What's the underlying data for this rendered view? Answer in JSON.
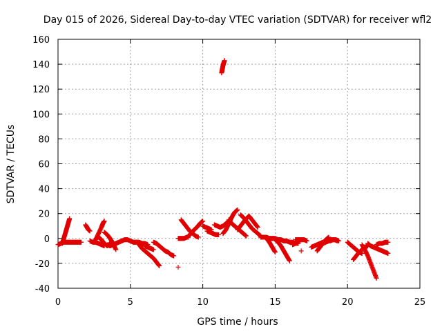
{
  "chart_data": {
    "type": "scatter",
    "title": "Day 015 of 2026, Sidereal Day-to-day VTEC variation (SDTVAR) for receiver wfl2",
    "xlabel": "GPS time / hours",
    "ylabel": "SDTVAR / TECUs",
    "xlim": [
      0,
      25
    ],
    "ylim": [
      -40,
      160
    ],
    "xticks": [
      "0",
      "5",
      "10",
      "15",
      "20",
      "25"
    ],
    "yticks": [
      "-40",
      "-20",
      "0",
      "20",
      "40",
      "60",
      "80",
      "100",
      "120",
      "140",
      "160"
    ],
    "grid": true,
    "marker": "+",
    "color": "#e00000",
    "series": [
      {
        "name": "seg01",
        "x": [
          0.0,
          0.2,
          0.4,
          0.6,
          0.8,
          1.0,
          1.2,
          1.4,
          1.6
        ],
        "y": [
          -5,
          -4,
          -3,
          -3,
          -3,
          -3,
          -3,
          -3,
          -3
        ]
      },
      {
        "name": "seg02",
        "x": [
          0.3,
          0.4,
          0.5,
          0.6,
          0.7,
          0.8
        ],
        "y": [
          -4,
          0,
          4,
          8,
          12,
          16
        ]
      },
      {
        "name": "seg03",
        "x": [
          1.9,
          2.0,
          2.1,
          2.2
        ],
        "y": [
          11,
          9,
          7,
          6
        ]
      },
      {
        "name": "seg04",
        "x": [
          2.2,
          2.4,
          2.6,
          2.8,
          3.0,
          3.2
        ],
        "y": [
          -2,
          -3,
          -3,
          -4,
          -5,
          -6
        ]
      },
      {
        "name": "seg05",
        "x": [
          2.6,
          2.8,
          3.0,
          3.1,
          3.2
        ],
        "y": [
          -1,
          4,
          9,
          12,
          14
        ]
      },
      {
        "name": "seg06",
        "x": [
          2.8,
          3.0,
          3.2,
          3.4,
          3.6,
          3.8
        ],
        "y": [
          1,
          -1,
          -4,
          -6,
          -4,
          -3
        ]
      },
      {
        "name": "seg07",
        "x": [
          3.2,
          3.4,
          3.6,
          3.8,
          4.0
        ],
        "y": [
          5,
          3,
          0,
          -4,
          -9
        ]
      },
      {
        "name": "seg08",
        "x": [
          3.4,
          3.6,
          3.8,
          4.0,
          4.2,
          4.4,
          4.6,
          4.8,
          5.0,
          5.2
        ],
        "y": [
          -5,
          -6,
          -5,
          -4,
          -3,
          -2,
          -1,
          -1,
          -2,
          -3
        ]
      },
      {
        "name": "seg09",
        "x": [
          5.2,
          5.4,
          5.6,
          5.8,
          6.0,
          6.2
        ],
        "y": [
          -3,
          -3,
          -3,
          -4,
          -4,
          -5
        ]
      },
      {
        "name": "seg10",
        "x": [
          5.6,
          5.8,
          6.0,
          6.2,
          6.4,
          6.6,
          6.8,
          7.0
        ],
        "y": [
          -5,
          -8,
          -10,
          -12,
          -14,
          -16,
          -19,
          -22
        ]
      },
      {
        "name": "seg11",
        "x": [
          6.0,
          6.2,
          6.4,
          6.6
        ],
        "y": [
          -6,
          -7,
          -8,
          -9
        ]
      },
      {
        "name": "seg12",
        "x": [
          6.6,
          6.8,
          7.0,
          7.2,
          7.4,
          7.6,
          7.8,
          8.0
        ],
        "y": [
          -3,
          -4,
          -6,
          -8,
          -10,
          -11,
          -13,
          -14
        ]
      },
      {
        "name": "seg13",
        "x": [
          8.3
        ],
        "y": [
          -23
        ]
      },
      {
        "name": "seg14",
        "x": [
          8.3,
          8.5,
          8.7,
          8.9,
          9.0
        ],
        "y": [
          0,
          0,
          0,
          1,
          1
        ]
      },
      {
        "name": "seg15",
        "x": [
          8.5,
          8.7,
          8.9,
          9.1,
          9.3,
          9.5,
          9.7
        ],
        "y": [
          15,
          12,
          9,
          6,
          4,
          2,
          1
        ]
      },
      {
        "name": "seg16",
        "x": [
          9.0,
          9.2,
          9.4,
          9.6,
          9.8,
          10.0
        ],
        "y": [
          2,
          4,
          7,
          9,
          12,
          14
        ]
      },
      {
        "name": "seg17",
        "x": [
          10.0,
          10.2,
          10.4,
          10.6
        ],
        "y": [
          10,
          9,
          8,
          7
        ]
      },
      {
        "name": "seg18",
        "x": [
          10.3,
          10.5,
          10.7,
          10.9,
          11.1
        ],
        "y": [
          6,
          5,
          4,
          3,
          3
        ]
      },
      {
        "name": "seg19",
        "x": [
          10.8,
          11.0,
          11.2,
          11.4,
          11.6,
          11.8,
          12.0
        ],
        "y": [
          11,
          10,
          9,
          10,
          12,
          14,
          17
        ]
      },
      {
        "name": "seg20",
        "x": [
          11.3,
          11.35,
          11.4,
          11.45,
          11.5
        ],
        "y": [
          133,
          136,
          139,
          141,
          143
        ]
      },
      {
        "name": "seg21",
        "x": [
          11.4,
          11.6,
          11.8,
          12.0,
          12.2,
          12.4
        ],
        "y": [
          4,
          7,
          12,
          17,
          21,
          23
        ]
      },
      {
        "name": "seg22",
        "x": [
          11.8,
          12.0,
          12.2,
          12.4,
          12.6,
          12.8,
          13.0
        ],
        "y": [
          15,
          12,
          10,
          8,
          6,
          4,
          2
        ]
      },
      {
        "name": "seg23",
        "x": [
          12.4,
          12.6,
          12.8,
          13.0,
          13.2,
          13.4,
          13.6,
          13.8
        ],
        "y": [
          7,
          10,
          13,
          16,
          18,
          15,
          12,
          9
        ]
      },
      {
        "name": "seg24",
        "x": [
          12.6,
          12.8,
          13.0,
          13.2,
          13.4,
          13.6,
          13.8,
          14.0
        ],
        "y": [
          19,
          17,
          14,
          11,
          8,
          6,
          4,
          2
        ]
      },
      {
        "name": "seg25",
        "x": [
          14.0,
          14.2,
          14.4,
          14.6,
          14.8,
          15.0,
          15.2,
          15.4
        ],
        "y": [
          1,
          1,
          1,
          0,
          0,
          0,
          -1,
          -1
        ]
      },
      {
        "name": "seg26",
        "x": [
          14.4,
          14.6,
          14.8,
          15.0
        ],
        "y": [
          0,
          -3,
          -7,
          -11
        ]
      },
      {
        "name": "seg27",
        "x": [
          15.0,
          15.2,
          15.4,
          15.6,
          15.8,
          16.0
        ],
        "y": [
          -1,
          -3,
          -6,
          -10,
          -14,
          -18
        ]
      },
      {
        "name": "seg28",
        "x": [
          15.2,
          15.4,
          15.6,
          15.8,
          16.0,
          16.2,
          16.4,
          16.6
        ],
        "y": [
          -1,
          -1,
          -2,
          -2,
          -3,
          -3,
          -4,
          -4
        ]
      },
      {
        "name": "seg29",
        "x": [
          16.2,
          16.4,
          16.6,
          16.8
        ],
        "y": [
          -5,
          -4,
          -2,
          -1
        ]
      },
      {
        "name": "seg30",
        "x": [
          16.4,
          16.6,
          16.8,
          17.0,
          17.2
        ],
        "y": [
          -1,
          -1,
          -1,
          -1,
          -2
        ]
      },
      {
        "name": "seg31",
        "x": [
          16.8
        ],
        "y": [
          -10
        ]
      },
      {
        "name": "seg32",
        "x": [
          17.5,
          17.7,
          17.9,
          18.1,
          18.3,
          18.5
        ],
        "y": [
          -7,
          -6,
          -5,
          -4,
          -3,
          -2
        ]
      },
      {
        "name": "seg33",
        "x": [
          17.9,
          18.1,
          18.3,
          18.5,
          18.7
        ],
        "y": [
          -10,
          -7,
          -4,
          -1,
          1
        ]
      },
      {
        "name": "seg34",
        "x": [
          18.3,
          18.5,
          18.7,
          18.9,
          19.1,
          19.3
        ],
        "y": [
          -4,
          -3,
          -2,
          -1,
          -1,
          -2
        ]
      },
      {
        "name": "seg35",
        "x": [
          18.8,
          19.0,
          19.2,
          19.4
        ],
        "y": [
          -2,
          -1,
          -1,
          -2
        ]
      },
      {
        "name": "seg36",
        "x": [
          20.0,
          20.2,
          20.4,
          20.6,
          20.8,
          21.0
        ],
        "y": [
          -3,
          -5,
          -7,
          -9,
          -11,
          -12
        ]
      },
      {
        "name": "seg37",
        "x": [
          20.4,
          20.6,
          20.8,
          21.0,
          21.2,
          21.4
        ],
        "y": [
          -17,
          -14,
          -11,
          -9,
          -7,
          -6
        ]
      },
      {
        "name": "seg38",
        "x": [
          21.0,
          21.2,
          21.4,
          21.6,
          21.8,
          22.0
        ],
        "y": [
          -5,
          -9,
          -14,
          -20,
          -26,
          -32
        ]
      },
      {
        "name": "seg39",
        "x": [
          21.4,
          21.6,
          21.8,
          22.0,
          22.2,
          22.4,
          22.6,
          22.8
        ],
        "y": [
          -4,
          -6,
          -7,
          -8,
          -9,
          -10,
          -11,
          -12
        ]
      },
      {
        "name": "seg40",
        "x": [
          22.0,
          22.2,
          22.4,
          22.6,
          22.8
        ],
        "y": [
          -5,
          -4,
          -4,
          -3,
          -3
        ]
      }
    ]
  }
}
